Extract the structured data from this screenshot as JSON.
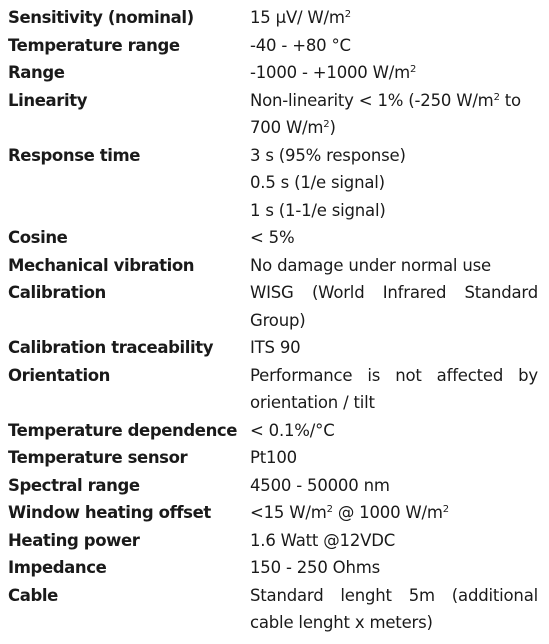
{
  "specs": [
    {
      "label": "Sensitivity (nominal)",
      "value": "15 μV/ W/m²"
    },
    {
      "label": "Temperature range",
      "value": " -40 - +80 °C"
    },
    {
      "label": "Range",
      "value": "-1000 - +1000 W/m²"
    },
    {
      "label": "Linearity",
      "value": "Non-linearity < 1% (-250 W/m² to 700 W/m²)"
    },
    {
      "label": "Response time",
      "value": "3 s (95% response)\n0.5 s (1/e signal)\n1 s (1-1/e signal)"
    },
    {
      "label": "Cosine",
      "value": "< 5%"
    },
    {
      "label": "Mechanical vibration",
      "value": "No damage under normal use"
    },
    {
      "label": "Calibration",
      "value": "WISG (World Infrared Standard Group)"
    },
    {
      "label": "Calibration traceability",
      "value": "ITS 90"
    },
    {
      "label": "Orientation",
      "value": "Performance is not affected by orientation / tilt"
    },
    {
      "label": "Temperature dependence",
      "value": "< 0.1%/°C"
    },
    {
      "label": "Temperature sensor",
      "value": "Pt100"
    },
    {
      "label": "Spectral range",
      "value": "4500 - 50000 nm"
    },
    {
      "label": "Window heating offset",
      "value": "<15 W/m² @ 1000 W/m²"
    },
    {
      "label": "Heating power",
      "value": "1.6 Watt @12VDC"
    },
    {
      "label": "Impedance",
      "value": "150 - 250 Ohms"
    },
    {
      "label": "Cable",
      "value": "Standard lenght 5m (additional cable lenght x meters)"
    }
  ]
}
